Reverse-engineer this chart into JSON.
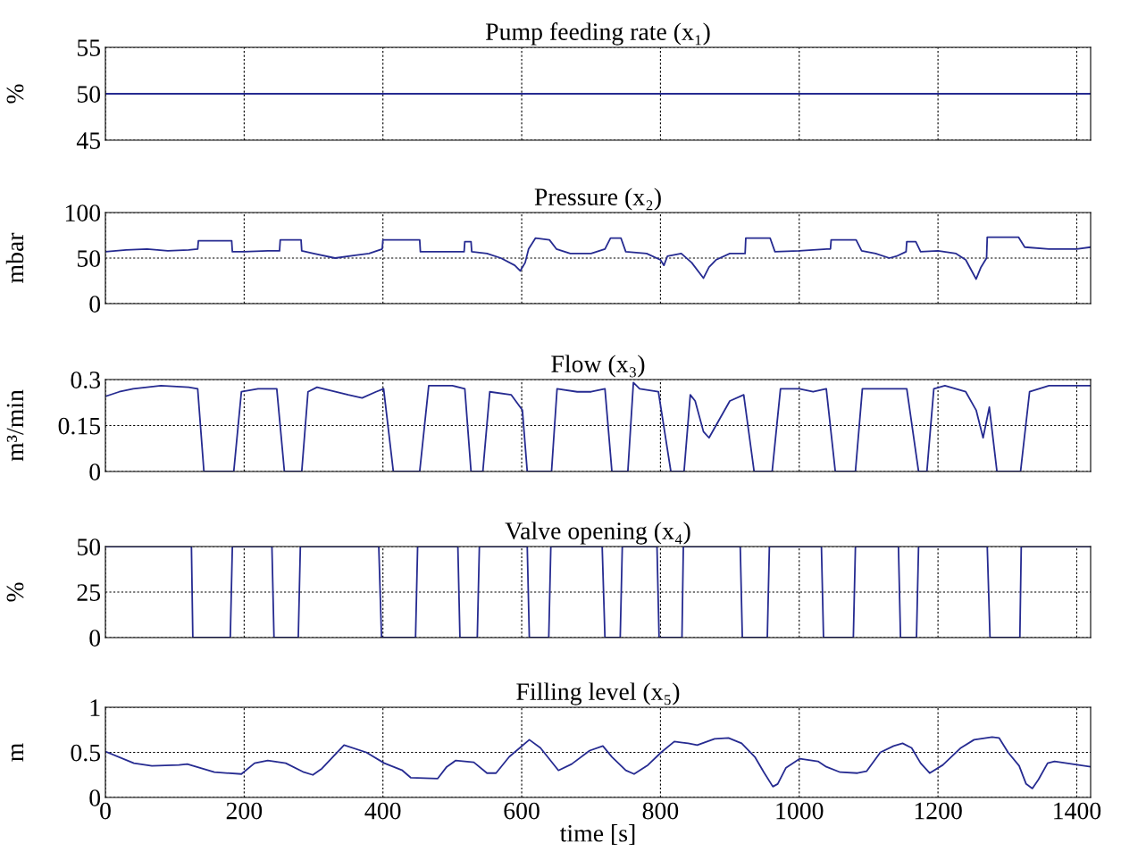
{
  "chart_data": [
    {
      "type": "line",
      "title": "Pump feeding rate (x₁)",
      "ylabel": "%",
      "xlim": [
        0,
        1420
      ],
      "xticks": [
        0,
        200,
        400,
        600,
        800,
        1000,
        1200,
        1400
      ],
      "ylim": [
        45,
        55
      ],
      "yticks": [
        45,
        50,
        55
      ],
      "grid": true,
      "tick_labels": "y",
      "series": [
        {
          "color": "#262b91",
          "x": [
            0,
            1420
          ],
          "values": [
            50,
            50
          ]
        }
      ]
    },
    {
      "type": "line",
      "title": "Pressure (x₂)",
      "ylabel": "mbar",
      "xlim": [
        0,
        1420
      ],
      "xticks": [
        0,
        200,
        400,
        600,
        800,
        1000,
        1200,
        1400
      ],
      "ylim": [
        0,
        100
      ],
      "yticks": [
        0,
        50,
        100
      ],
      "grid": true,
      "tick_labels": "y",
      "series": [
        {
          "color": "#262b91",
          "x": [
            0,
            30,
            60,
            90,
            120,
            133,
            134,
            182,
            183,
            200,
            234,
            251,
            252,
            282,
            283,
            300,
            331,
            360,
            380,
            399,
            400,
            453,
            454,
            480,
            500,
            517,
            518,
            527,
            528,
            550,
            570,
            590,
            598,
            605,
            610,
            620,
            640,
            650,
            670,
            700,
            720,
            728,
            743,
            750,
            780,
            800,
            805,
            810,
            830,
            845,
            862,
            870,
            880,
            900,
            922,
            923,
            958,
            965,
            1000,
            1040,
            1045,
            1046,
            1082,
            1090,
            1110,
            1130,
            1140,
            1154,
            1155,
            1168,
            1175,
            1200,
            1226,
            1240,
            1255,
            1262,
            1270,
            1271,
            1316,
            1325,
            1360,
            1400,
            1420
          ],
          "values": [
            57,
            59,
            60,
            58,
            59,
            60,
            69,
            69,
            57,
            57,
            58,
            58,
            70,
            70,
            58,
            55,
            50,
            53,
            55,
            60,
            70,
            70,
            57,
            57,
            57,
            57,
            68,
            68,
            57,
            55,
            50,
            42,
            36,
            45,
            60,
            72,
            70,
            60,
            55,
            55,
            60,
            72,
            72,
            57,
            55,
            48,
            42,
            52,
            55,
            45,
            28,
            40,
            48,
            55,
            55,
            72,
            72,
            57,
            58,
            60,
            60,
            70,
            70,
            58,
            55,
            50,
            52,
            57,
            68,
            68,
            57,
            58,
            55,
            48,
            27,
            40,
            50,
            73,
            73,
            62,
            60,
            60,
            62
          ]
        }
      ]
    },
    {
      "type": "line",
      "title": "Flow (x₃)",
      "ylabel": "m³/min",
      "xlim": [
        0,
        1420
      ],
      "xticks": [
        0,
        200,
        400,
        600,
        800,
        1000,
        1200,
        1400
      ],
      "ylim": [
        0,
        0.3
      ],
      "yticks": [
        0,
        0.15,
        0.3
      ],
      "grid": true,
      "tick_labels": "y",
      "series": [
        {
          "color": "#262b91",
          "x": [
            0,
            20,
            40,
            80,
            120,
            133,
            142,
            185,
            196,
            220,
            247,
            258,
            283,
            292,
            305,
            350,
            370,
            390,
            401,
            415,
            453,
            466,
            500,
            518,
            527,
            544,
            554,
            585,
            601,
            608,
            643,
            651,
            680,
            700,
            720,
            730,
            753,
            761,
            770,
            797,
            815,
            834,
            843,
            850,
            862,
            870,
            880,
            900,
            920,
            935,
            961,
            973,
            1000,
            1020,
            1039,
            1052,
            1081,
            1091,
            1155,
            1172,
            1184,
            1194,
            1210,
            1240,
            1255,
            1265,
            1274,
            1285,
            1319,
            1332,
            1360,
            1420
          ],
          "values": [
            0.245,
            0.26,
            0.27,
            0.28,
            0.275,
            0.27,
            0,
            0,
            0.26,
            0.27,
            0.27,
            0,
            0,
            0.26,
            0.275,
            0.25,
            0.24,
            0.26,
            0.27,
            0,
            0,
            0.28,
            0.28,
            0.27,
            0,
            0,
            0.26,
            0.25,
            0.2,
            0,
            0,
            0.27,
            0.26,
            0.26,
            0.27,
            0,
            0,
            0.29,
            0.27,
            0.26,
            0,
            0,
            0.25,
            0.23,
            0.13,
            0.11,
            0.15,
            0.23,
            0.25,
            0,
            0,
            0.27,
            0.27,
            0.26,
            0.27,
            0,
            0,
            0.27,
            0.27,
            0,
            0,
            0.27,
            0.28,
            0.26,
            0.2,
            0.11,
            0.21,
            0,
            0,
            0.26,
            0.28,
            0.28
          ]
        }
      ]
    },
    {
      "type": "line",
      "title": "Valve opening (x₄)",
      "ylabel": "%",
      "xlim": [
        0,
        1420
      ],
      "xticks": [
        0,
        200,
        400,
        600,
        800,
        1000,
        1200,
        1400
      ],
      "ylim": [
        0,
        50
      ],
      "yticks": [
        0,
        25,
        50
      ],
      "grid": true,
      "tick_labels": "y",
      "series": [
        {
          "color": "#262b91",
          "x": [
            0,
            124,
            126,
            180,
            183,
            240,
            243,
            278,
            281,
            394,
            398,
            447,
            450,
            508,
            511,
            536,
            539,
            608,
            611,
            639,
            642,
            716,
            720,
            742,
            745,
            795,
            798,
            831,
            833,
            915,
            918,
            954,
            957,
            1032,
            1035,
            1078,
            1081,
            1143,
            1146,
            1169,
            1172,
            1271,
            1275,
            1318,
            1320,
            1420
          ],
          "values": [
            50,
            50,
            0,
            0,
            50,
            50,
            0,
            0,
            50,
            50,
            0,
            0,
            50,
            50,
            0,
            0,
            50,
            50,
            0,
            0,
            50,
            50,
            0,
            0,
            50,
            50,
            0,
            0,
            50,
            50,
            0,
            0,
            50,
            50,
            0,
            0,
            50,
            50,
            0,
            0,
            50,
            50,
            0,
            0,
            50,
            50
          ]
        }
      ]
    },
    {
      "type": "line",
      "title": "Filling level (x₅)",
      "xlabel": "time [s]",
      "ylabel": "m",
      "xlim": [
        0,
        1420
      ],
      "xticks": [
        0,
        200,
        400,
        600,
        800,
        1000,
        1200,
        1400
      ],
      "ylim": [
        0,
        1
      ],
      "yticks": [
        0,
        0.5,
        1
      ],
      "grid": true,
      "series": [
        {
          "color": "#262b91",
          "x": [
            0,
            41,
            67,
            106,
            118,
            131,
            157,
            196,
            215,
            234,
            260,
            286,
            299,
            312,
            344,
            376,
            402,
            428,
            440,
            479,
            492,
            505,
            531,
            550,
            563,
            582,
            611,
            627,
            653,
            672,
            698,
            717,
            730,
            750,
            762,
            782,
            801,
            820,
            840,
            853,
            878,
            898,
            917,
            936,
            949,
            962,
            969,
            981,
            1001,
            1027,
            1039,
            1059,
            1084,
            1097,
            1117,
            1136,
            1149,
            1162,
            1175,
            1188,
            1207,
            1233,
            1252,
            1278,
            1288,
            1301,
            1317,
            1327,
            1336,
            1345,
            1358,
            1368,
            1394,
            1420
          ],
          "values": [
            0.51,
            0.38,
            0.35,
            0.36,
            0.37,
            0.34,
            0.28,
            0.26,
            0.38,
            0.41,
            0.38,
            0.28,
            0.25,
            0.32,
            0.58,
            0.5,
            0.38,
            0.3,
            0.22,
            0.21,
            0.34,
            0.41,
            0.39,
            0.27,
            0.27,
            0.45,
            0.64,
            0.55,
            0.3,
            0.37,
            0.52,
            0.57,
            0.45,
            0.3,
            0.26,
            0.36,
            0.5,
            0.62,
            0.6,
            0.58,
            0.65,
            0.66,
            0.6,
            0.45,
            0.28,
            0.12,
            0.15,
            0.33,
            0.43,
            0.4,
            0.34,
            0.28,
            0.27,
            0.29,
            0.5,
            0.57,
            0.6,
            0.55,
            0.38,
            0.27,
            0.36,
            0.55,
            0.64,
            0.67,
            0.66,
            0.5,
            0.35,
            0.15,
            0.1,
            0.2,
            0.38,
            0.4,
            0.37,
            0.34
          ]
        }
      ]
    }
  ]
}
